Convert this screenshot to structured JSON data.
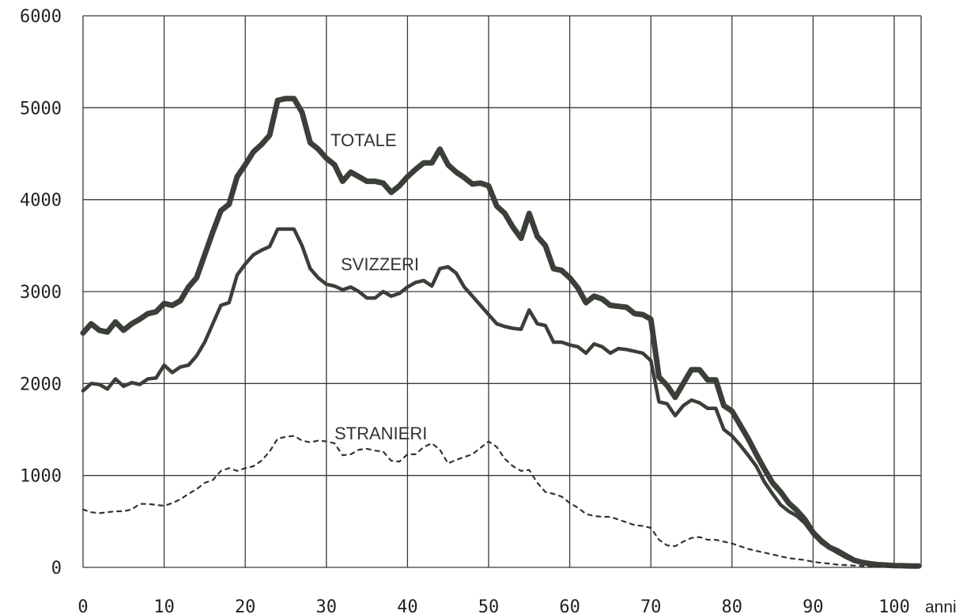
{
  "chart_data": {
    "type": "line",
    "title": "",
    "xlabel": "anni",
    "ylabel": "",
    "xlim": [
      0,
      103
    ],
    "ylim": [
      0,
      6000
    ],
    "grid": true,
    "x_ticks": [
      0,
      10,
      20,
      30,
      40,
      50,
      60,
      70,
      80,
      90,
      100
    ],
    "y_ticks": [
      0,
      1000,
      2000,
      3000,
      4000,
      5000,
      6000
    ],
    "x": [
      0,
      1,
      2,
      3,
      4,
      5,
      6,
      7,
      8,
      9,
      10,
      11,
      12,
      13,
      14,
      15,
      16,
      17,
      18,
      19,
      20,
      21,
      22,
      23,
      24,
      25,
      26,
      27,
      28,
      29,
      30,
      31,
      32,
      33,
      34,
      35,
      36,
      37,
      38,
      39,
      40,
      41,
      42,
      43,
      44,
      45,
      46,
      47,
      48,
      49,
      50,
      51,
      52,
      53,
      54,
      55,
      56,
      57,
      58,
      59,
      60,
      61,
      62,
      63,
      64,
      65,
      66,
      67,
      68,
      69,
      70,
      71,
      72,
      73,
      74,
      75,
      76,
      77,
      78,
      79,
      80,
      81,
      82,
      83,
      84,
      85,
      86,
      87,
      88,
      89,
      90,
      91,
      92,
      93,
      94,
      95,
      96,
      97,
      98,
      99,
      100,
      101,
      102,
      103
    ],
    "series": [
      {
        "name": "TOTALE",
        "color": "#3a3f38",
        "style": "solid-thick",
        "values": [
          2550,
          2650,
          2580,
          2560,
          2670,
          2580,
          2650,
          2700,
          2760,
          2780,
          2870,
          2850,
          2900,
          3050,
          3150,
          3400,
          3650,
          3880,
          3950,
          4250,
          4380,
          4520,
          4600,
          4700,
          5080,
          5100,
          5100,
          4950,
          4620,
          4550,
          4450,
          4380,
          4200,
          4300,
          4250,
          4200,
          4200,
          4180,
          4080,
          4150,
          4250,
          4330,
          4400,
          4400,
          4550,
          4380,
          4300,
          4240,
          4170,
          4180,
          4150,
          3930,
          3850,
          3700,
          3580,
          3850,
          3600,
          3500,
          3250,
          3230,
          3150,
          3040,
          2880,
          2950,
          2920,
          2850,
          2840,
          2830,
          2760,
          2750,
          2700,
          2070,
          1980,
          1850,
          2000,
          2150,
          2150,
          2040,
          2040,
          1760,
          1700,
          1550,
          1400,
          1230,
          1070,
          920,
          820,
          700,
          620,
          520,
          380,
          290,
          220,
          180,
          130,
          80,
          55,
          40,
          30,
          25,
          20,
          18,
          15,
          15
        ]
      },
      {
        "name": "SVIZZERI",
        "color": "#3a3f38",
        "style": "solid",
        "values": [
          1920,
          2000,
          1990,
          1940,
          2050,
          1970,
          2010,
          1990,
          2050,
          2060,
          2200,
          2120,
          2180,
          2200,
          2300,
          2450,
          2650,
          2850,
          2880,
          3180,
          3300,
          3400,
          3450,
          3490,
          3680,
          3680,
          3680,
          3500,
          3250,
          3150,
          3080,
          3060,
          3020,
          3050,
          3000,
          2930,
          2930,
          3000,
          2950,
          2980,
          3050,
          3100,
          3120,
          3060,
          3250,
          3270,
          3200,
          3050,
          2950,
          2850,
          2750,
          2650,
          2620,
          2600,
          2590,
          2800,
          2650,
          2630,
          2450,
          2450,
          2420,
          2400,
          2330,
          2430,
          2400,
          2330,
          2380,
          2370,
          2350,
          2330,
          2250,
          1800,
          1780,
          1650,
          1760,
          1820,
          1790,
          1730,
          1730,
          1500,
          1430,
          1330,
          1220,
          1100,
          930,
          800,
          680,
          610,
          560,
          480,
          360,
          270,
          210,
          160,
          110,
          70,
          50,
          35,
          25,
          20,
          18,
          15,
          12,
          12
        ]
      },
      {
        "name": "STRANIERI",
        "color": "#333333",
        "style": "dotted",
        "values": [
          630,
          600,
          590,
          600,
          610,
          610,
          630,
          690,
          690,
          680,
          670,
          700,
          740,
          800,
          850,
          920,
          950,
          1050,
          1080,
          1050,
          1080,
          1100,
          1160,
          1260,
          1400,
          1420,
          1430,
          1380,
          1360,
          1380,
          1370,
          1350,
          1220,
          1230,
          1280,
          1290,
          1270,
          1260,
          1160,
          1150,
          1230,
          1230,
          1310,
          1350,
          1280,
          1130,
          1170,
          1200,
          1230,
          1300,
          1370,
          1310,
          1180,
          1100,
          1050,
          1060,
          920,
          820,
          800,
          770,
          700,
          650,
          580,
          560,
          550,
          550,
          520,
          490,
          460,
          450,
          430,
          300,
          240,
          230,
          280,
          320,
          330,
          300,
          300,
          280,
          260,
          230,
          200,
          180,
          160,
          140,
          120,
          100,
          90,
          80,
          60,
          50,
          40,
          30,
          25,
          20,
          15,
          12,
          10,
          8,
          6,
          5,
          5,
          5
        ]
      }
    ],
    "annotations": [
      {
        "text": "TOTALE",
        "series": "TOTALE"
      },
      {
        "text": "SVIZZERI",
        "series": "SVIZZERI"
      },
      {
        "text": "STRANIERI",
        "series": "STRANIERI"
      }
    ]
  }
}
